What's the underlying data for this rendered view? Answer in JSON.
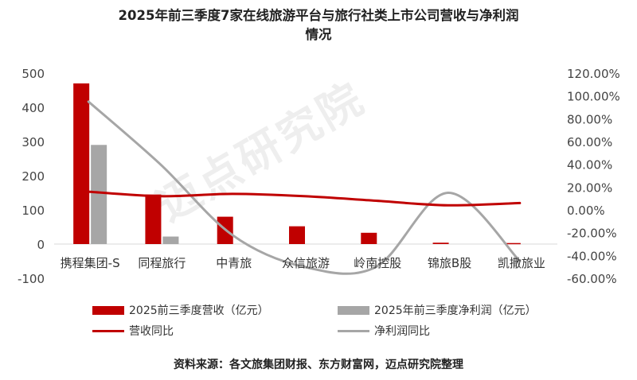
{
  "chart_data": {
    "type": "bar",
    "title_line1": "2025年前三季度7家在线旅游平台与旅行社类上市公司营收与净利润",
    "title_line2": "情况",
    "categories": [
      "携程集团-S",
      "同程旅行",
      "中青旅",
      "众信旅游",
      "岭南控股",
      "锦旅B股",
      "凯撒旅业"
    ],
    "series": [
      {
        "name": "2025前三季度营收（亿元）",
        "type": "bar",
        "axis": "left",
        "color": "#c00000",
        "values": [
          470,
          145,
          80,
          52,
          33,
          4,
          3
        ]
      },
      {
        "name": "2025年前三季度净利润（亿元）",
        "type": "bar",
        "axis": "left",
        "color": "#a6a6a6",
        "values": [
          290,
          22,
          0,
          0,
          0,
          0,
          0
        ]
      },
      {
        "name": "营收同比",
        "type": "line",
        "axis": "right",
        "color": "#c00000",
        "values": [
          16,
          12,
          14,
          12,
          8,
          4,
          6
        ]
      },
      {
        "name": "净利润同比",
        "type": "line",
        "axis": "right",
        "color": "#a6a6a6",
        "values": [
          95,
          40,
          -22,
          -50,
          -50,
          15,
          -45
        ]
      }
    ],
    "y_left": {
      "min": -100,
      "max": 500,
      "ticks": [
        "500",
        "400",
        "300",
        "200",
        "100",
        "0",
        "-100"
      ]
    },
    "y_right": {
      "min": -60,
      "max": 120,
      "ticks": [
        "120.00%",
        "100.00%",
        "80.00%",
        "60.00%",
        "40.00%",
        "20.00%",
        "0.00%",
        "-20.00%",
        "-40.00%",
        "-60.00%"
      ]
    },
    "grid": false,
    "legend_position": "bottom"
  },
  "source": "资料来源：各文旅集团财报、东方财富网，迈点研究院整理",
  "watermark": "迈点研究院"
}
